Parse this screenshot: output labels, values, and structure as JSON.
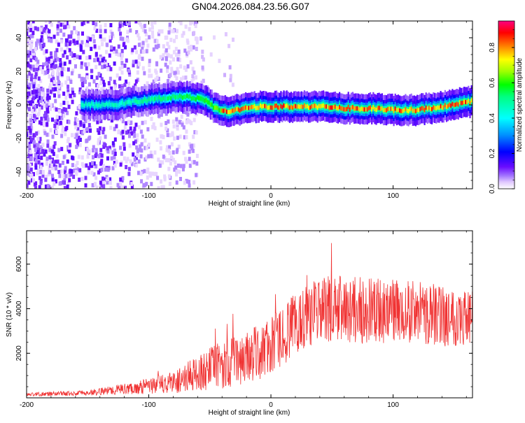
{
  "title": "GN04.2026.084.23.56.G07",
  "colors": {
    "snr_line": "#f03232",
    "colormap": [
      "#ffffff",
      "#e5ccff",
      "#a070ff",
      "#6a0dff",
      "#0000ff",
      "#00b0ff",
      "#00ffb0",
      "#00ff00",
      "#c8ff00",
      "#ffff00",
      "#ff8000",
      "#ff0000",
      "#ff0080"
    ]
  },
  "chart_data": [
    {
      "type": "heatmap",
      "name": "spectrogram",
      "xlabel": "Height of straight line (km)",
      "ylabel": "Frequency (Hz)",
      "xlim": [
        -200,
        165
      ],
      "ylim": [
        -50,
        50
      ],
      "xticks": [
        -200,
        -100,
        0,
        100
      ],
      "xtick_labels": [
        "-200",
        "-100",
        "0",
        "100"
      ],
      "yticks": [
        -40,
        -20,
        0,
        20,
        40
      ],
      "ytick_labels": [
        "-40",
        "-20",
        "0",
        "20",
        "40"
      ],
      "ridge": {
        "x": [
          -150,
          -130,
          -110,
          -90,
          -70,
          -55,
          -45,
          -35,
          -20,
          -10,
          0,
          20,
          40,
          60,
          80,
          100,
          120,
          140,
          155,
          165
        ],
        "freq_hz": [
          0,
          0,
          2,
          4,
          5,
          3,
          -2,
          -4,
          -2,
          -1,
          -1,
          -1,
          -1,
          -2,
          -2,
          -3,
          -3,
          -1,
          1,
          2
        ]
      },
      "colorbar": {
        "label": "Normalized spectral amplitude",
        "range": [
          0,
          0.95
        ],
        "ticks": [
          0.0,
          0.2,
          0.4,
          0.6,
          0.8
        ],
        "tick_labels": [
          "0.0",
          "0.2",
          "0.4",
          "0.6",
          "0.8"
        ]
      }
    },
    {
      "type": "line",
      "name": "snr",
      "xlabel": "Height of straight line (km)",
      "ylabel": "SNR (10 * v/v)",
      "xlim": [
        -200,
        165
      ],
      "ylim": [
        0,
        7500
      ],
      "xticks": [
        -200,
        -100,
        0,
        100
      ],
      "xtick_labels": [
        "-200",
        "-100",
        "0",
        "100"
      ],
      "yticks": [
        2000,
        4000,
        6000
      ],
      "ytick_labels": [
        "2000",
        "4000",
        "6000"
      ],
      "envelope": {
        "x": [
          -200,
          -150,
          -130,
          -110,
          -80,
          -60,
          -40,
          -20,
          0,
          20,
          30,
          50,
          80,
          110,
          140,
          165
        ],
        "mean": [
          150,
          220,
          350,
          450,
          700,
          1100,
          1500,
          1800,
          2300,
          3300,
          3800,
          4000,
          3900,
          3900,
          3700,
          3600
        ],
        "spread": [
          80,
          120,
          200,
          280,
          500,
          800,
          1100,
          1200,
          1300,
          1400,
          1500,
          1500,
          1500,
          1400,
          1400,
          1300
        ]
      }
    }
  ]
}
